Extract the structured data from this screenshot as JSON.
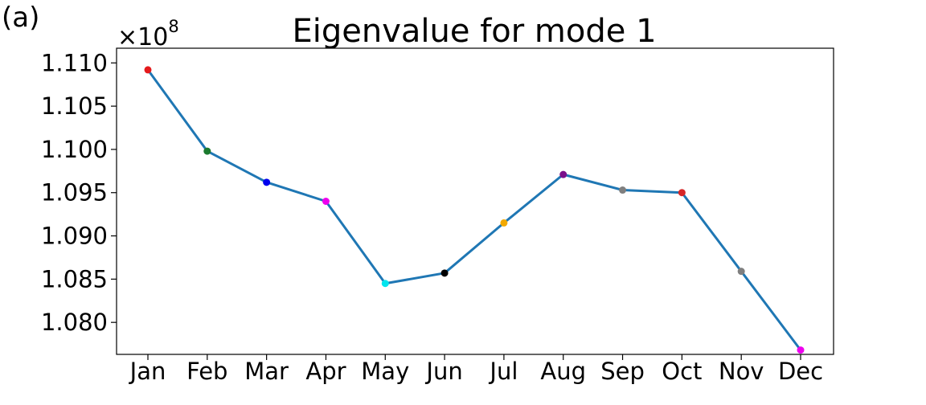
{
  "panel_label": "(a)",
  "chart_data": {
    "type": "line",
    "title": "Eigenvalue for mode 1",
    "xlabel": "",
    "ylabel": "",
    "y_multiplier": {
      "base": "×10",
      "exponent": "8"
    },
    "categories": [
      "Jan",
      "Feb",
      "Mar",
      "Apr",
      "May",
      "Jun",
      "Jul",
      "Aug",
      "Sep",
      "Oct",
      "Nov",
      "Dec"
    ],
    "series": [
      {
        "values": [
          1.1092,
          1.0998,
          1.0962,
          1.094,
          1.0845,
          1.0857,
          1.0915,
          1.0971,
          1.0953,
          1.095,
          1.0859,
          1.0768
        ],
        "line_color": "#1f77b4",
        "marker_colors": [
          "#e41a1c",
          "#1a7a2e",
          "#0000ee",
          "#ee00ee",
          "#00e5ee",
          "#000000",
          "#f2a900",
          "#7a0f8a",
          "#7f7f7f",
          "#d62728",
          "#7f7f7f",
          "#ee00ee"
        ]
      }
    ],
    "yticks": [
      "1.080",
      "1.085",
      "1.090",
      "1.095",
      "1.100",
      "1.105",
      "1.110"
    ],
    "ytick_values": [
      1.08,
      1.085,
      1.09,
      1.095,
      1.1,
      1.105,
      1.11
    ],
    "ylim": [
      1.0763,
      1.1117
    ],
    "grid": false,
    "legend": "none"
  }
}
